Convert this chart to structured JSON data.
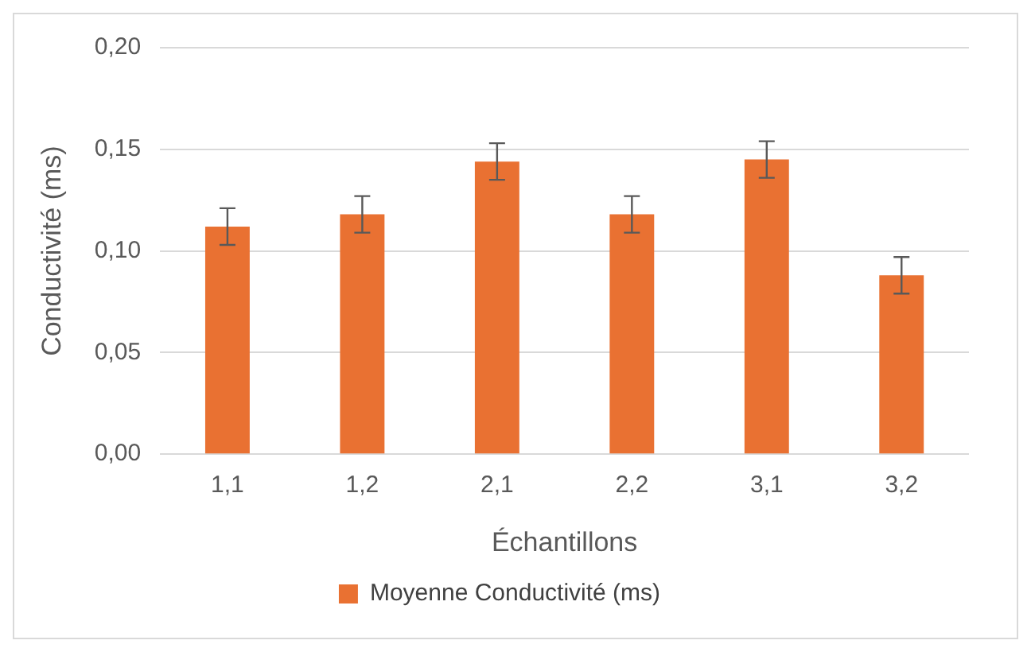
{
  "chart_data": {
    "type": "bar",
    "xlabel": "Échantillons",
    "ylabel": "Conductivité (ms)",
    "categories": [
      "1,1",
      "1,2",
      "2,1",
      "2,2",
      "3,1",
      "3,2"
    ],
    "series": [
      {
        "name": "Moyenne Conductivité (ms)",
        "color": "#e97132",
        "values": [
          0.112,
          0.118,
          0.144,
          0.118,
          0.145,
          0.088
        ],
        "errors": [
          0.009,
          0.009,
          0.009,
          0.009,
          0.009,
          0.009
        ]
      }
    ],
    "ylim": [
      0,
      0.2
    ],
    "yticks": [
      {
        "value": 0,
        "label": "0,00"
      },
      {
        "value": 0.05,
        "label": "0,05"
      },
      {
        "value": 0.1,
        "label": "0,10"
      },
      {
        "value": 0.15,
        "label": "0,15"
      },
      {
        "value": 0.2,
        "label": "0,20"
      }
    ],
    "grid": "y",
    "legend": "bottom"
  }
}
